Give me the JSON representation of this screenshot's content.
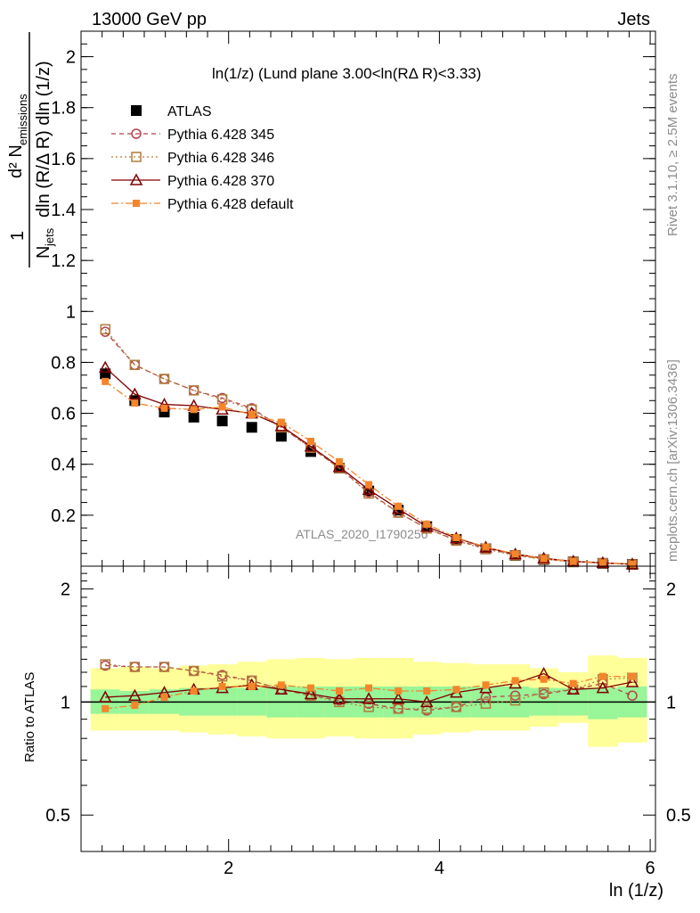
{
  "header": {
    "left": "13000 GeV pp",
    "right": "Jets"
  },
  "side": {
    "rivet": "Rivet 3.1.10, ≥ 2.5M events",
    "mcplots": "mcplots.cern.ch [arXiv:1306.3436]"
  },
  "watermark": "ATLAS_2020_I1790256",
  "plot_title": "ln(1/z) (Lund plane 3.00<ln(RΔ R)<3.33)",
  "ylabel_parts": {
    "one": "1",
    "Njets": "N",
    "jets": "jets",
    "dln": "dln (R/Δ R) dln (1/z)",
    "d2": "d² N",
    "emissions": "emissions"
  },
  "xlabel": "ln (1/z)",
  "ratio_ylabel": "Ratio to ATLAS",
  "colors": {
    "atlas": "#000000",
    "p345": "#b5424b",
    "p346": "#b07c3c",
    "p370": "#800000",
    "pdef": "#f5852a",
    "band_yellow": "#ffff99",
    "band_green": "#98f598"
  },
  "chart_data": [
    {
      "type": "line",
      "title": "ln(1/z) (Lund plane 3.00<ln(RΔ R)<3.33)",
      "xlabel": "ln (1/z)",
      "ylabel": "1/N_jets d²N_emissions / dln(R/ΔR) dln(1/z)",
      "xlim": [
        0.6,
        6.05
      ],
      "ylim": [
        0,
        2.1
      ],
      "xticks": [
        2,
        4,
        6
      ],
      "yticks": [
        0.2,
        0.4,
        0.6,
        0.8,
        1,
        1.2,
        1.4,
        1.6,
        1.8,
        2
      ],
      "ytick_labels": [
        "0.2",
        "0.4",
        "0.6",
        "0.8",
        "1",
        "1.2",
        "1.4",
        "1.6",
        "1.8",
        "2"
      ],
      "x": [
        0.83,
        1.11,
        1.39,
        1.67,
        1.94,
        2.22,
        2.5,
        2.78,
        3.05,
        3.33,
        3.61,
        3.88,
        4.16,
        4.44,
        4.72,
        4.99,
        5.27,
        5.55,
        5.83
      ],
      "series": [
        {
          "name": "ATLAS",
          "values": [
            0.755,
            0.65,
            0.605,
            0.585,
            0.57,
            0.545,
            0.51,
            0.45,
            0.385,
            0.295,
            0.22,
            0.155,
            0.105,
            0.068,
            0.042,
            0.026,
            0.017,
            0.011,
            0.007
          ]
        },
        {
          "name": "Pythia 6.428 345",
          "values": [
            0.92,
            0.79,
            0.735,
            0.69,
            0.66,
            0.62,
            0.545,
            0.465,
            0.385,
            0.29,
            0.21,
            0.148,
            0.102,
            0.07,
            0.044,
            0.028,
            0.018,
            0.012,
            0.007
          ]
        },
        {
          "name": "Pythia 6.428 346",
          "values": [
            0.93,
            0.79,
            0.735,
            0.69,
            0.655,
            0.615,
            0.545,
            0.465,
            0.385,
            0.285,
            0.21,
            0.148,
            0.1,
            0.067,
            0.042,
            0.027,
            0.017,
            0.012,
            0.007
          ]
        },
        {
          "name": "Pythia 6.428 370",
          "values": [
            0.78,
            0.675,
            0.635,
            0.63,
            0.615,
            0.6,
            0.55,
            0.47,
            0.39,
            0.3,
            0.225,
            0.155,
            0.11,
            0.074,
            0.047,
            0.031,
            0.019,
            0.013,
            0.008
          ]
        },
        {
          "name": "Pythia 6.428 default",
          "values": [
            0.725,
            0.64,
            0.62,
            0.615,
            0.625,
            0.595,
            0.565,
            0.49,
            0.41,
            0.32,
            0.235,
            0.165,
            0.112,
            0.075,
            0.048,
            0.03,
            0.019,
            0.013,
            0.008
          ]
        }
      ]
    },
    {
      "type": "line",
      "title": "Ratio to ATLAS",
      "ylabel": "Ratio to ATLAS",
      "xlim": [
        0.6,
        6.05
      ],
      "ylim": [
        0.4,
        2.3
      ],
      "scale": "log",
      "yticks": [
        0.5,
        1,
        2
      ],
      "ytick_labels": [
        "0.5",
        "1",
        "2"
      ],
      "x": [
        0.83,
        1.11,
        1.39,
        1.67,
        1.94,
        2.22,
        2.5,
        2.78,
        3.05,
        3.33,
        3.61,
        3.88,
        4.16,
        4.44,
        4.72,
        4.99,
        5.27,
        5.55,
        5.83
      ],
      "band_green": [
        [
          0.93,
          1.08
        ],
        [
          0.93,
          1.07
        ],
        [
          0.93,
          1.08
        ],
        [
          0.92,
          1.09
        ],
        [
          0.92,
          1.09
        ],
        [
          0.92,
          1.09
        ],
        [
          0.91,
          1.1
        ],
        [
          0.91,
          1.1
        ],
        [
          0.91,
          1.1
        ],
        [
          0.91,
          1.1
        ],
        [
          0.91,
          1.1
        ],
        [
          0.91,
          1.1
        ],
        [
          0.91,
          1.1
        ],
        [
          0.91,
          1.1
        ],
        [
          0.91,
          1.1
        ],
        [
          0.92,
          1.09
        ],
        [
          0.92,
          1.09
        ],
        [
          0.9,
          1.09
        ],
        [
          0.91,
          1.1
        ]
      ],
      "band_yellow": [
        [
          0.84,
          1.23
        ],
        [
          0.84,
          1.24
        ],
        [
          0.84,
          1.23
        ],
        [
          0.83,
          1.25
        ],
        [
          0.82,
          1.26
        ],
        [
          0.81,
          1.28
        ],
        [
          0.8,
          1.3
        ],
        [
          0.8,
          1.31
        ],
        [
          0.81,
          1.3
        ],
        [
          0.8,
          1.31
        ],
        [
          0.8,
          1.31
        ],
        [
          0.82,
          1.28
        ],
        [
          0.83,
          1.27
        ],
        [
          0.84,
          1.26
        ],
        [
          0.84,
          1.26
        ],
        [
          0.86,
          1.23
        ],
        [
          0.88,
          1.2
        ],
        [
          0.76,
          1.33
        ],
        [
          0.78,
          1.31
        ]
      ],
      "series": [
        {
          "name": "Pythia 6.428 345",
          "values": [
            1.25,
            1.24,
            1.24,
            1.21,
            1.18,
            1.14,
            1.08,
            1.04,
            1.01,
            0.99,
            0.96,
            0.95,
            0.97,
            1.03,
            1.04,
            1.05,
            1.08,
            1.12,
            1.04
          ]
        },
        {
          "name": "Pythia 6.428 346",
          "values": [
            1.26,
            1.24,
            1.24,
            1.21,
            1.17,
            1.14,
            1.08,
            1.04,
            1.0,
            0.97,
            0.96,
            0.96,
            0.97,
            0.99,
            1.01,
            1.06,
            1.08,
            1.15,
            1.16
          ]
        },
        {
          "name": "Pythia 6.428 370",
          "values": [
            1.03,
            1.04,
            1.06,
            1.08,
            1.09,
            1.11,
            1.08,
            1.05,
            1.02,
            1.02,
            1.02,
            1.0,
            1.06,
            1.09,
            1.12,
            1.19,
            1.08,
            1.09,
            1.13
          ]
        },
        {
          "name": "Pythia 6.428 default",
          "values": [
            0.96,
            0.98,
            1.03,
            1.07,
            1.1,
            1.1,
            1.11,
            1.09,
            1.07,
            1.09,
            1.07,
            1.07,
            1.08,
            1.11,
            1.14,
            1.15,
            1.12,
            1.17,
            1.17
          ]
        }
      ]
    }
  ]
}
